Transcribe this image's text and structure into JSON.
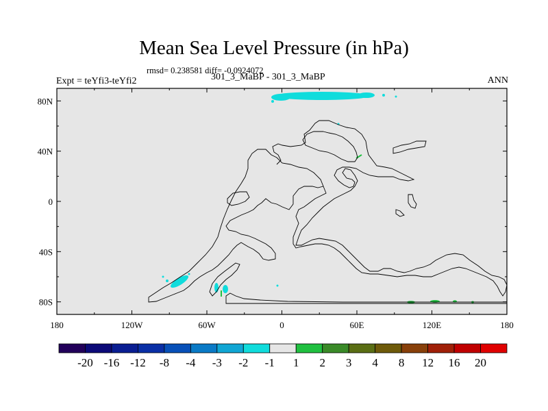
{
  "chart_data": {
    "type": "heatmap",
    "title": "Mean Sea Level Pressure (in hPa)",
    "stats_line": "rmsd= 0.238581 diff= -0.0924072",
    "left_label": "Expt = teYfi3-teYfi2",
    "center_label": "301_3_MaBP - 301_3_MaBP",
    "right_label": "ANN",
    "x_ticks": [
      "180",
      "120W",
      "60W",
      "0",
      "60E",
      "120E",
      "180"
    ],
    "x_tick_values": [
      -180,
      -120,
      -60,
      0,
      60,
      120,
      180
    ],
    "y_ticks": [
      "80N",
      "40N",
      "0",
      "40S",
      "80S"
    ],
    "y_tick_values": [
      80,
      40,
      0,
      -40,
      -80
    ],
    "xlim": [
      -180,
      180
    ],
    "ylim": [
      -90,
      90
    ],
    "background_color": "#e6e6e6",
    "colorbar": {
      "labels": [
        "-20",
        "-16",
        "-12",
        "-8",
        "-4",
        "-3",
        "-2",
        "-1",
        "1",
        "2",
        "3",
        "4",
        "8",
        "12",
        "16",
        "20"
      ],
      "colors": [
        "#22005a",
        "#0c0a78",
        "#0a1e92",
        "#0a2fa6",
        "#0850b8",
        "#0a7ac6",
        "#10a6d4",
        "#10dcdc",
        "#e6e6e6",
        "#20c040",
        "#3a8a28",
        "#5a6e14",
        "#6e5a0a",
        "#88400a",
        "#a02008",
        "#c00000",
        "#e00000"
      ]
    },
    "anomaly_blobs": [
      {
        "name": "arctic-cyan-band",
        "lon_range": [
          2,
          68
        ],
        "lat_range": [
          81,
          87
        ],
        "level": "-1"
      },
      {
        "name": "south-pacific-cyan",
        "lon_range": [
          -98,
          -70
        ],
        "lat_range": [
          -74,
          -60
        ],
        "level": "-1"
      },
      {
        "name": "south-atlantic-cyan",
        "lon_range": [
          -54,
          -44
        ],
        "lat_range": [
          -76,
          -68
        ],
        "level": "-1"
      },
      {
        "name": "antarctic-green",
        "lon_range": [
          100,
          155
        ],
        "lat_range": [
          -82,
          -80
        ],
        "level": "1"
      }
    ]
  }
}
